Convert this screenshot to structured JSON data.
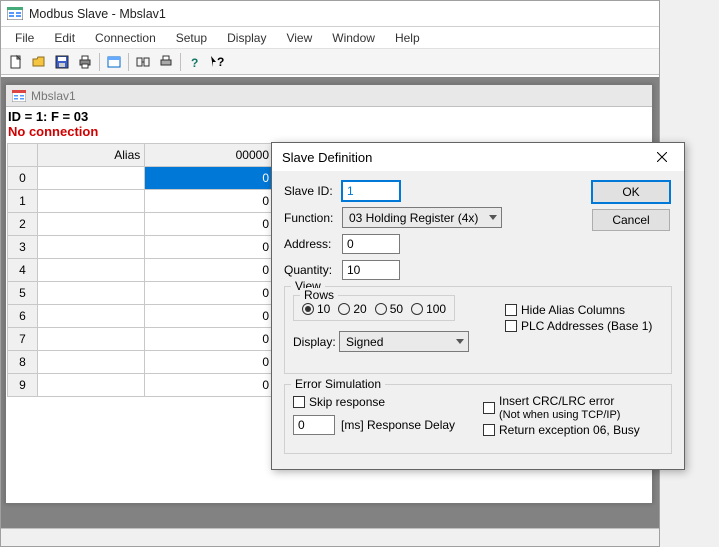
{
  "window": {
    "title": "Modbus Slave - Mbslav1"
  },
  "menu": [
    "File",
    "Edit",
    "Connection",
    "Setup",
    "Display",
    "View",
    "Window",
    "Help"
  ],
  "mdi": {
    "title": "Mbslav1",
    "status1": "ID = 1: F = 03",
    "status2": "No connection",
    "columns": {
      "alias": "Alias",
      "value": "00000"
    },
    "rows": [
      {
        "idx": "0",
        "alias": "",
        "val": "0",
        "selected": true
      },
      {
        "idx": "1",
        "alias": "",
        "val": "0"
      },
      {
        "idx": "2",
        "alias": "",
        "val": "0"
      },
      {
        "idx": "3",
        "alias": "",
        "val": "0"
      },
      {
        "idx": "4",
        "alias": "",
        "val": "0"
      },
      {
        "idx": "5",
        "alias": "",
        "val": "0"
      },
      {
        "idx": "6",
        "alias": "",
        "val": "0"
      },
      {
        "idx": "7",
        "alias": "",
        "val": "0"
      },
      {
        "idx": "8",
        "alias": "",
        "val": "0"
      },
      {
        "idx": "9",
        "alias": "",
        "val": "0"
      }
    ]
  },
  "dialog": {
    "title": "Slave Definition",
    "ok": "OK",
    "cancel": "Cancel",
    "slaveid_label": "Slave ID:",
    "slaveid_value": "1",
    "function_label": "Function:",
    "function_value": "03 Holding Register (4x)",
    "address_label": "Address:",
    "address_value": "0",
    "quantity_label": "Quantity:",
    "quantity_value": "10",
    "view": {
      "title": "View",
      "rows_title": "Rows",
      "rows_options": [
        "10",
        "20",
        "50",
        "100"
      ],
      "rows_selected": "10",
      "hide_alias": "Hide Alias Columns",
      "plc_addr": "PLC Addresses (Base 1)",
      "display_label": "Display:",
      "display_value": "Signed"
    },
    "error": {
      "title": "Error Simulation",
      "skip": "Skip response",
      "delay_value": "0",
      "delay_label": "[ms] Response Delay",
      "crc": "Insert CRC/LRC error",
      "crc_note": "(Not when using TCP/IP)",
      "busy": "Return exception 06, Busy"
    }
  }
}
